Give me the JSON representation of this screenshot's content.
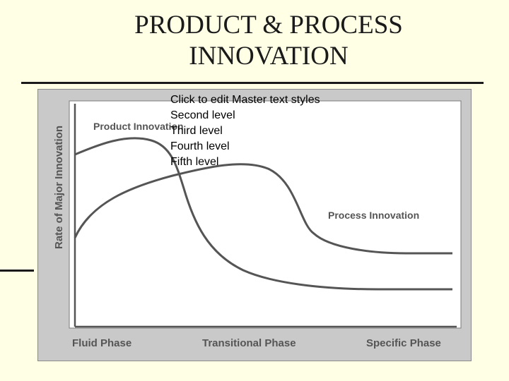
{
  "slide": {
    "title_line1": "PRODUCT & PROCESS",
    "title_line2": "INNOVATION",
    "placeholder_levels": [
      "Click to edit Master text styles",
      "Second level",
      "Third level",
      "Fourth level",
      "Fifth level"
    ]
  },
  "diagram": {
    "y_axis_label": "Rate of Major Innovation",
    "curve_labels": {
      "product": "Product Innovation",
      "process": "Process Innovation"
    },
    "phases": [
      "Fluid Phase",
      "Transitional Phase",
      "Specific Phase"
    ]
  },
  "colors": {
    "background": "#FFFFE5",
    "figure_frame": "#c9c9c9",
    "plot_area": "#ffffff",
    "curve": "#555555",
    "label_text": "#555555"
  }
}
